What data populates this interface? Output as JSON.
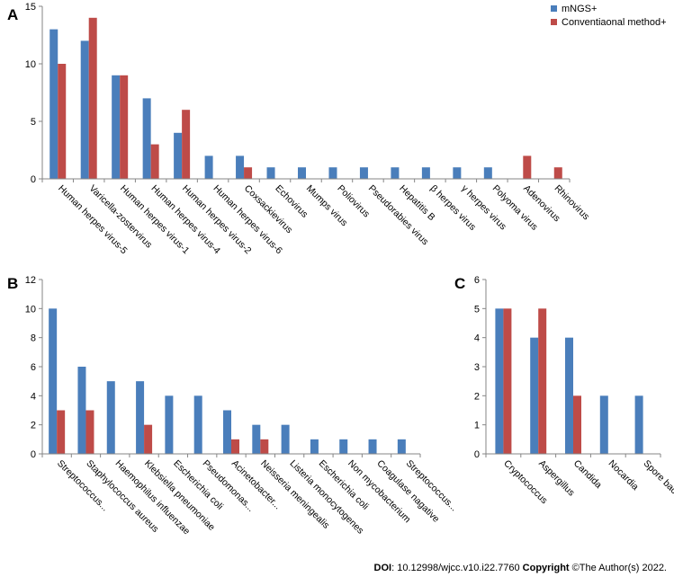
{
  "legend": {
    "series": [
      "mNGS+",
      "Conventiaonal method+"
    ]
  },
  "colors": {
    "mngs": "#4a7ebb",
    "conv": "#be4b48",
    "axis": "#868686"
  },
  "chart_data": [
    {
      "panel": "A",
      "type": "bar",
      "ylim": [
        0,
        15
      ],
      "yticks": [
        0,
        5,
        10,
        15
      ],
      "categories": [
        "Human herpes virus-5",
        "Varicella-zostervirus",
        "Human herpes virus-1",
        "Human herpes virus-4",
        "Human herpes virus-2",
        "Human herpes virus-6",
        "Coxsackievirus",
        "Echovirus",
        "Mumps virus",
        "Poliovirus",
        "Pseudorabies virus",
        "Hepatitis B",
        "β herpes virus",
        "γ herpes virus",
        "Polyoma virus",
        "Adenovirus",
        "Rhinovirus"
      ],
      "series": [
        {
          "name": "mNGS+",
          "values": [
            13,
            12,
            9,
            7,
            4,
            2,
            2,
            1,
            1,
            1,
            1,
            1,
            1,
            1,
            1,
            0,
            0
          ]
        },
        {
          "name": "Conventiaonal method+",
          "values": [
            10,
            14,
            9,
            3,
            6,
            0,
            1,
            0,
            0,
            0,
            0,
            0,
            0,
            0,
            0,
            2,
            1
          ]
        }
      ]
    },
    {
      "panel": "B",
      "type": "bar",
      "ylim": [
        0,
        12
      ],
      "yticks": [
        0,
        2,
        4,
        6,
        8,
        10,
        12
      ],
      "categories": [
        "Streptococcus...",
        "Staphylococcus aureus",
        "Haemophilus influenzae",
        "Klebsiella pneumoniae",
        "Escherichia coli",
        "Pseudomonas...",
        "Acinetobacter...",
        "Neisseria meningealis",
        "Listeria monocytogenes",
        "Escherichia coli",
        "Non mycobacterium",
        "Coagulase nagative",
        "Streptococcus..."
      ],
      "series": [
        {
          "name": "mNGS+",
          "values": [
            10,
            6,
            5,
            5,
            4,
            4,
            3,
            2,
            2,
            1,
            1,
            1,
            1
          ]
        },
        {
          "name": "Conventiaonal method+",
          "values": [
            3,
            3,
            0,
            2,
            0,
            0,
            1,
            1,
            0,
            0,
            0,
            0,
            0
          ]
        }
      ]
    },
    {
      "panel": "C",
      "type": "bar",
      "ylim": [
        0,
        6
      ],
      "yticks": [
        0,
        1,
        2,
        3,
        4,
        5,
        6
      ],
      "categories": [
        "Cryptococcus",
        "Aspergillus",
        "Candida",
        "Nocardia",
        "Spore bacteria"
      ],
      "series": [
        {
          "name": "mNGS+",
          "values": [
            5,
            4,
            4,
            2,
            2
          ]
        },
        {
          "name": "Conventiaonal method+",
          "values": [
            5,
            5,
            2,
            0,
            0
          ]
        }
      ]
    }
  ],
  "footer": {
    "doi_label": "DOI",
    "doi_value": ": 10.12998/wjcc.v10.i22.7760 ",
    "copyright_label": "Copyright",
    "copyright_value": " ©The Author(s) 2022."
  }
}
